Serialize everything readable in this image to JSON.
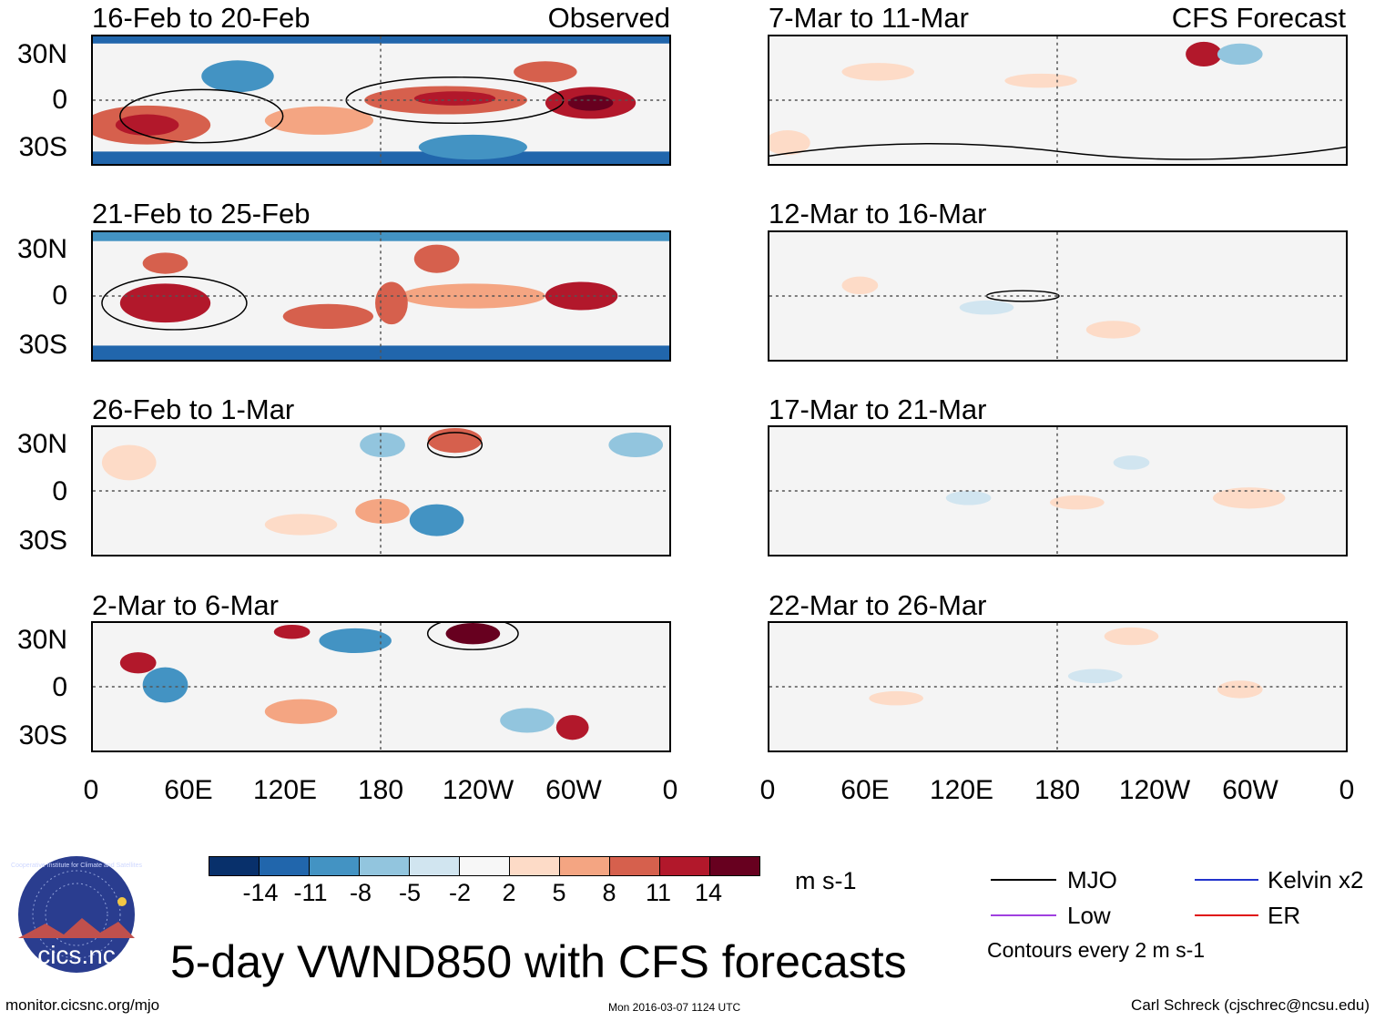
{
  "panels_left": [
    {
      "title": "16-Feb to 20-Feb",
      "tag": "Observed"
    },
    {
      "title": "21-Feb to 25-Feb",
      "tag": ""
    },
    {
      "title": "26-Feb to 1-Mar",
      "tag": ""
    },
    {
      "title": "2-Mar to 6-Mar",
      "tag": ""
    }
  ],
  "panels_right": [
    {
      "title": "7-Mar to 11-Mar",
      "tag": "CFS Forecast"
    },
    {
      "title": "12-Mar to 16-Mar",
      "tag": ""
    },
    {
      "title": "17-Mar to 21-Mar",
      "tag": ""
    },
    {
      "title": "22-Mar to 26-Mar",
      "tag": ""
    }
  ],
  "lat_labels": [
    "30N",
    "0",
    "30S"
  ],
  "lon_labels": [
    "0",
    "60E",
    "120E",
    "180",
    "120W",
    "60W",
    "0"
  ],
  "colorbar": {
    "colors": [
      "#08306b",
      "#2166ac",
      "#4393c3",
      "#92c5de",
      "#d1e5f0",
      "#f7f7f7",
      "#fddbc7",
      "#f4a582",
      "#d6604d",
      "#b2182b",
      "#67001f"
    ],
    "labels": [
      "-14",
      "-11",
      "-8",
      "-5",
      "-2",
      "2",
      "5",
      "8",
      "11",
      "14"
    ],
    "units": "m s-1"
  },
  "legend": {
    "items": [
      {
        "label": "MJO",
        "color": "#000000"
      },
      {
        "label": "Kelvin x2",
        "color": "#2233cc"
      },
      {
        "label": "Low",
        "color": "#a040e0"
      },
      {
        "label": "ER",
        "color": "#e01010"
      }
    ],
    "note": "Contours every 2 m s-1"
  },
  "logo_text": "cics.nc",
  "logo_ring": "Cooperative Institute for Climate and Satellites",
  "main_title": "5-day VWND850 with CFS forecasts",
  "footer": {
    "url": "monitor.cicsnc.org/mjo",
    "timestamp": "Mon 2016-03-07 1124 UTC",
    "author": "Carl Schreck (cjschrec@ncsu.edu)"
  }
}
